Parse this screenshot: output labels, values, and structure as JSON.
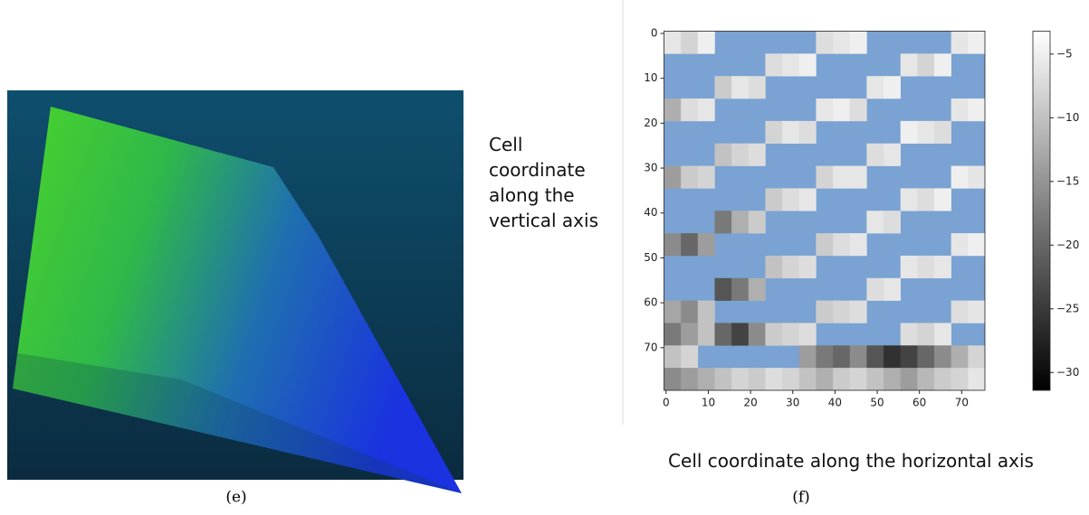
{
  "figure": {
    "label_e": "(e)",
    "label_f": "(f)"
  },
  "chart_data": {
    "type": "heatmap",
    "xlabel": "Cell coordinate along the horizontal axis",
    "ylabel": "Cell coordinate along the vertical axis",
    "xlim": [
      -0.5,
      75.5
    ],
    "ylim": [
      -0.5,
      79.5
    ],
    "y_inverted": true,
    "xticks": [
      0,
      10,
      20,
      30,
      40,
      50,
      60,
      70
    ],
    "yticks": [
      0,
      10,
      20,
      30,
      40,
      50,
      60,
      70
    ],
    "nan_color": "#7aa2d3",
    "clim": [
      -31.4,
      -3.2
    ],
    "colorbar_ticks": [
      {
        "value": -5,
        "label": "−5"
      },
      {
        "value": -10,
        "label": "−10"
      },
      {
        "value": -15,
        "label": "−15"
      },
      {
        "value": -20,
        "label": "−20"
      },
      {
        "value": -25,
        "label": "−25"
      },
      {
        "value": -30,
        "label": "−30"
      }
    ],
    "z": [
      [
        -6,
        -8,
        -5,
        null,
        null,
        null,
        null,
        null,
        null,
        -7,
        -6,
        -5,
        null,
        null,
        null,
        null,
        null,
        -6,
        -5
      ],
      [
        null,
        null,
        null,
        null,
        null,
        null,
        -7,
        -6,
        -5,
        null,
        null,
        null,
        null,
        null,
        -6,
        -8,
        -5,
        null,
        null
      ],
      [
        null,
        null,
        null,
        -9,
        -6,
        -7,
        null,
        null,
        null,
        null,
        null,
        null,
        -6,
        -5,
        null,
        null,
        null,
        null,
        null
      ],
      [
        -12,
        -7,
        -6,
        null,
        null,
        null,
        null,
        null,
        null,
        -6,
        -5,
        -7,
        null,
        null,
        null,
        null,
        null,
        -6,
        -5
      ],
      [
        null,
        null,
        null,
        null,
        null,
        null,
        -8,
        -6,
        -7,
        null,
        null,
        null,
        null,
        null,
        -5,
        -6,
        -7,
        null,
        null
      ],
      [
        null,
        null,
        null,
        -10,
        -8,
        -7,
        null,
        null,
        null,
        null,
        null,
        null,
        -7,
        -6,
        null,
        null,
        null,
        null,
        null
      ],
      [
        -14,
        -9,
        -8,
        null,
        null,
        null,
        null,
        null,
        null,
        -8,
        -6,
        -6,
        null,
        null,
        null,
        null,
        null,
        -5,
        -6
      ],
      [
        null,
        null,
        null,
        null,
        null,
        null,
        -9,
        -7,
        -6,
        null,
        null,
        null,
        null,
        null,
        -6,
        -7,
        -5,
        null,
        null
      ],
      [
        null,
        null,
        null,
        -18,
        -12,
        -9,
        null,
        null,
        null,
        null,
        null,
        null,
        -6,
        -7,
        null,
        null,
        null,
        null,
        null
      ],
      [
        -16,
        -20,
        -14,
        null,
        null,
        null,
        null,
        null,
        null,
        -9,
        -7,
        -6,
        null,
        null,
        null,
        null,
        null,
        -6,
        -5
      ],
      [
        null,
        null,
        null,
        null,
        null,
        null,
        -10,
        -8,
        -7,
        null,
        null,
        null,
        null,
        null,
        -6,
        -7,
        -6,
        null,
        null
      ],
      [
        null,
        null,
        null,
        -22,
        -18,
        -12,
        null,
        null,
        null,
        null,
        null,
        null,
        -7,
        -6,
        null,
        null,
        null,
        null,
        null
      ],
      [
        -13,
        -16,
        -10,
        null,
        null,
        null,
        null,
        null,
        null,
        -9,
        -8,
        -7,
        null,
        null,
        null,
        null,
        null,
        -7,
        -6
      ],
      [
        -18,
        -14,
        -10,
        -20,
        -24,
        -16,
        -9,
        -8,
        -7,
        null,
        null,
        null,
        null,
        null,
        -7,
        -8,
        -6,
        null,
        null
      ],
      [
        -10,
        -8,
        null,
        null,
        null,
        null,
        null,
        null,
        -14,
        -18,
        -20,
        -16,
        -22,
        -26,
        -24,
        -20,
        -16,
        -12,
        -8
      ],
      [
        -16,
        -14,
        -12,
        -10,
        -8,
        -9,
        -7,
        -8,
        -10,
        -12,
        -9,
        -8,
        -10,
        -12,
        -14,
        -11,
        -9,
        -8,
        -6
      ]
    ]
  }
}
